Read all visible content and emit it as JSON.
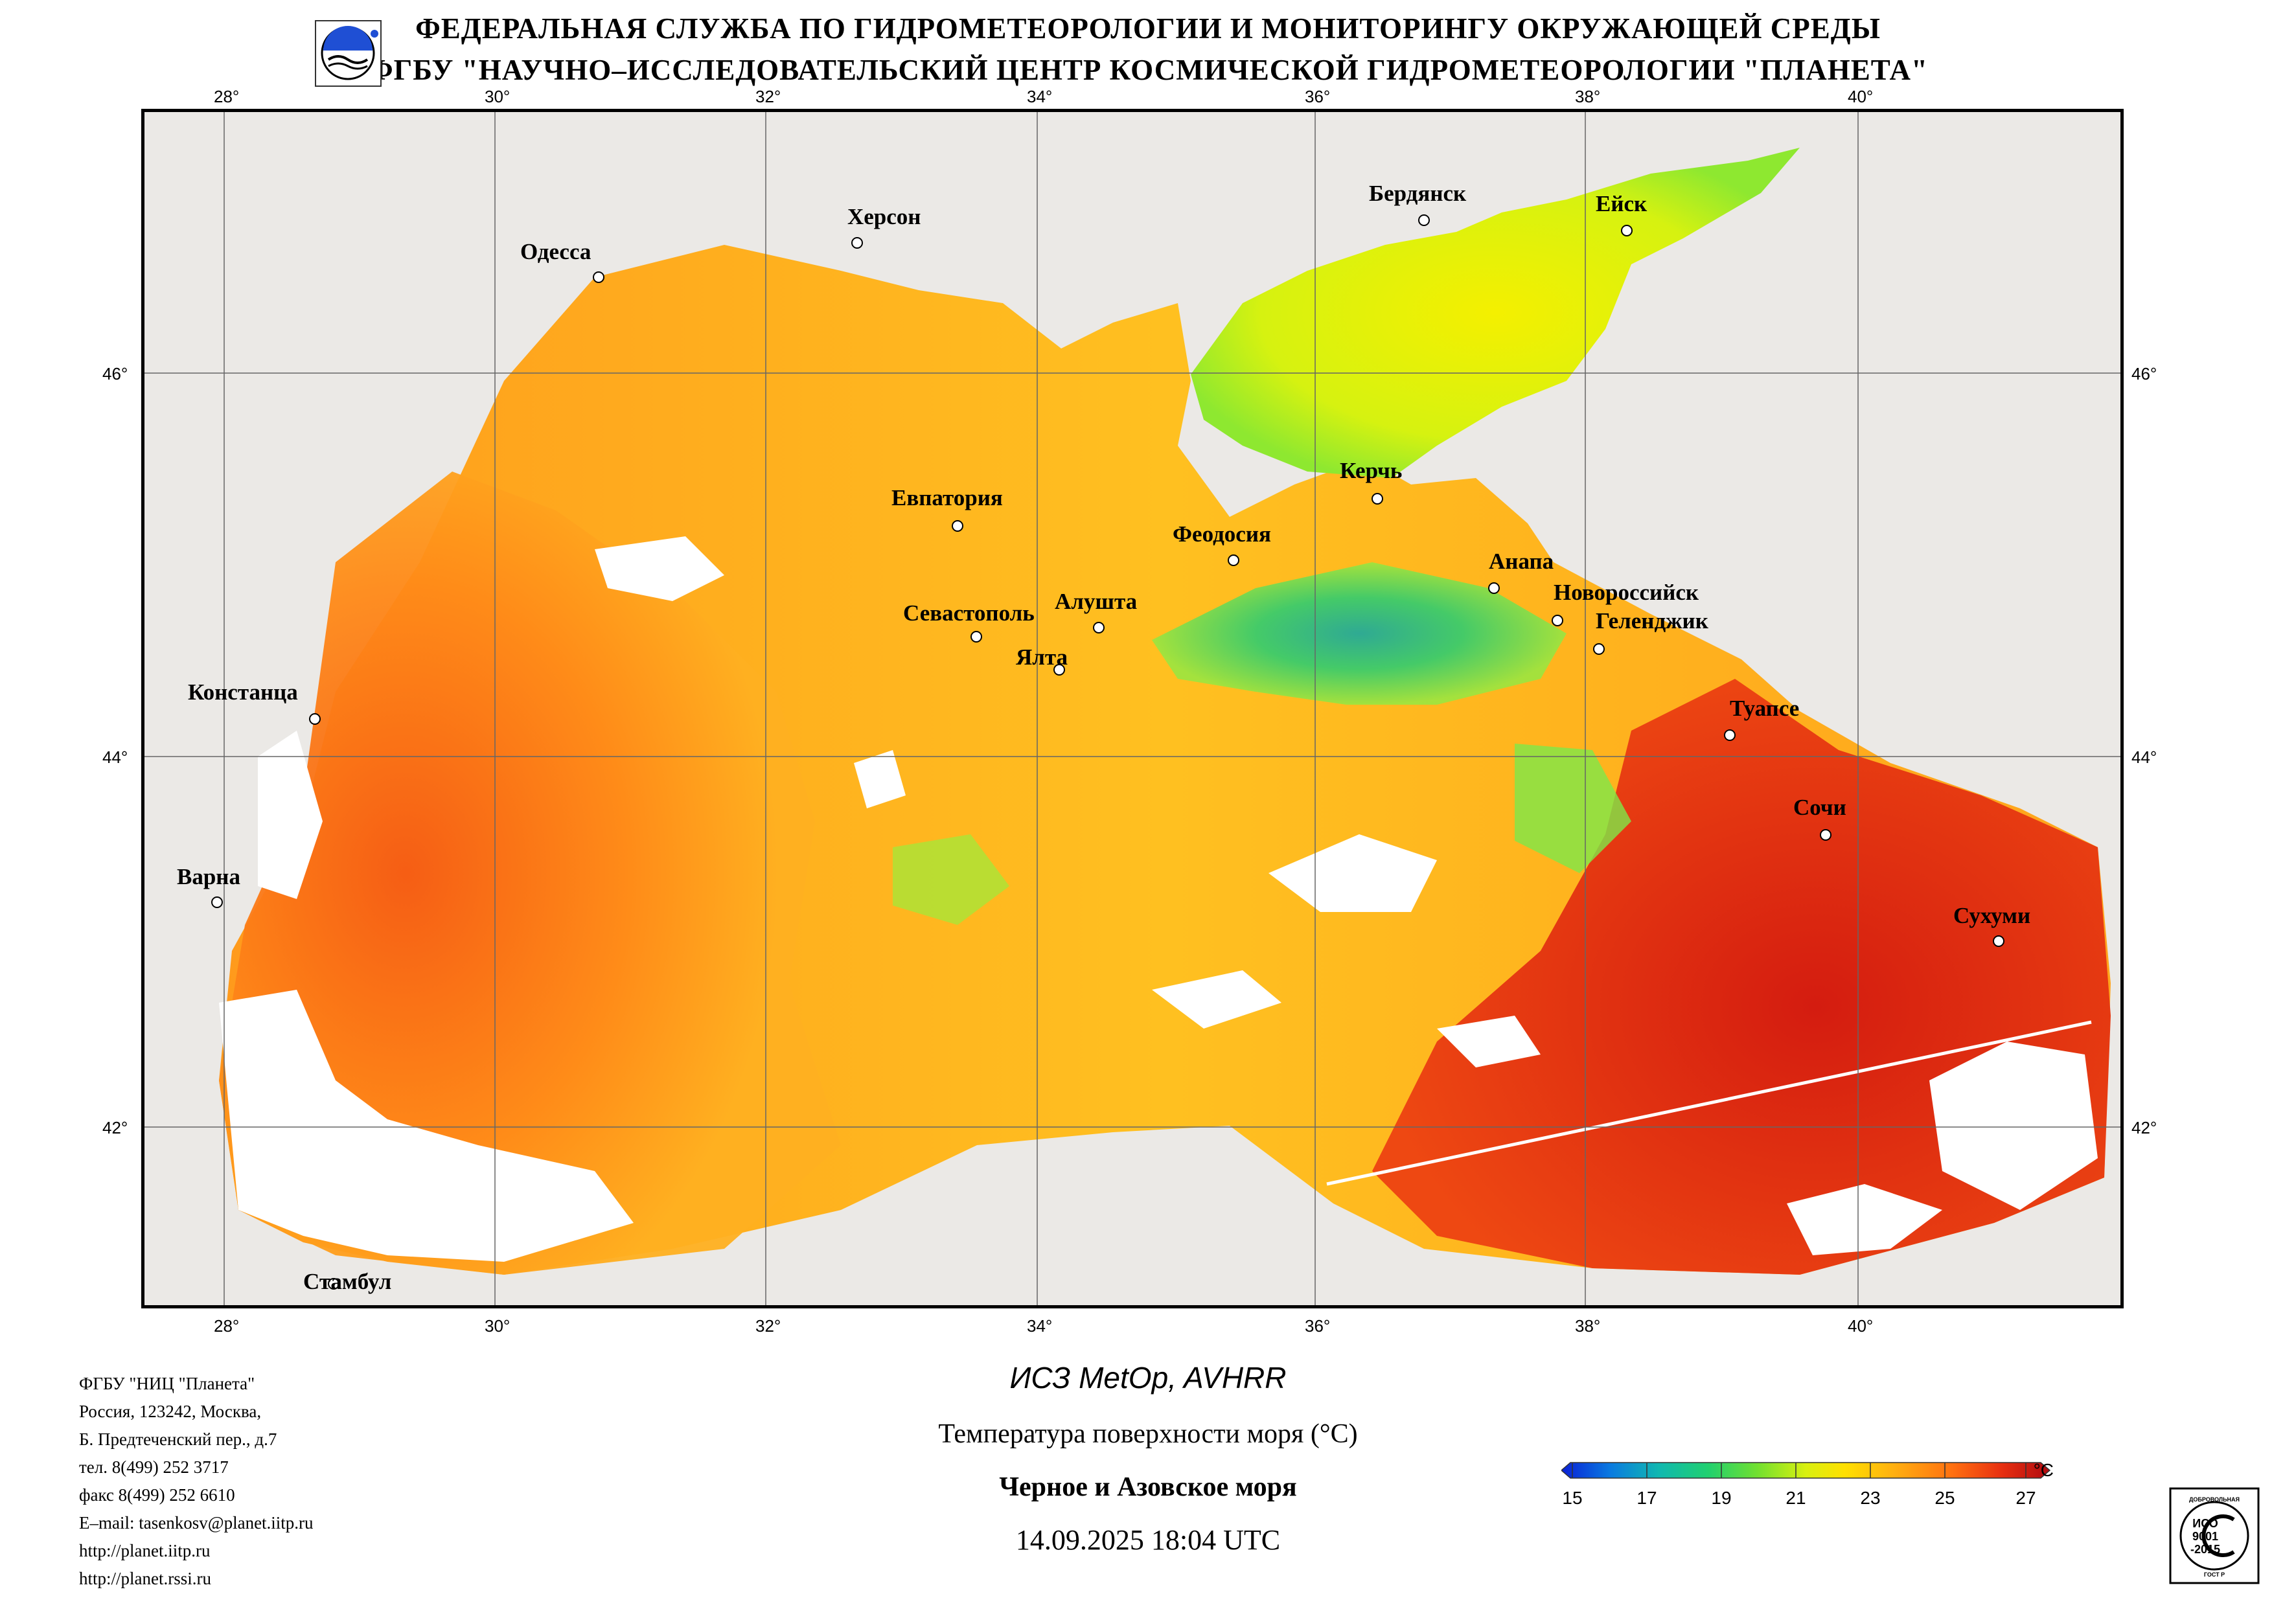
{
  "header": {
    "line1": "ФЕДЕРАЛЬНАЯ СЛУЖБА ПО ГИДРОМЕТЕОРОЛОГИИ И МОНИТОРИНГУ ОКРУЖАЮЩЕЙ СРЕДЫ",
    "line2": "ФГБУ \"НАУЧНО–ИССЛЕДОВАТЕЛЬСКИЙ ЦЕНТР КОСМИЧЕСКОЙ ГИДРОМЕТЕОРОЛОГИИ \"ПЛАНЕТА\""
  },
  "map": {
    "lon_labels": [
      "28°",
      "30°",
      "32°",
      "34°",
      "36°",
      "38°",
      "40°"
    ],
    "lat_labels": [
      "46°",
      "44°",
      "42°"
    ],
    "cities": [
      "Херсон",
      "Одесса",
      "Бердянск",
      "Ейск",
      "Евпатория",
      "Керчь",
      "Феодосия",
      "Анапа",
      "Новороссийск",
      "Геленджик",
      "Севастополь",
      "Алушта",
      "Ялта",
      "Констанца",
      "Туапсе",
      "Сочи",
      "Варна",
      "Сухуми",
      "Стамбул"
    ],
    "colors": {
      "land": "#ebe9e6",
      "no_data": "#ffffff",
      "border": "#000000"
    }
  },
  "footer": {
    "org_lines": [
      "ФГБУ \"НИЦ \"Планета\"",
      "Россия, 123242, Москва,",
      "Б. Предтеченский пер., д.7",
      "тел. 8(499) 252 3717",
      "факс 8(499) 252 6610",
      "E–mail: tasenkosv@planet.iitp.ru",
      "http://planet.iitp.ru",
      "http://planet.rssi.ru"
    ],
    "satellite": "ИСЗ MetOp, AVHRR",
    "parameter": "Температура поверхности моря (°C)",
    "region": "Черное и Азовское моря",
    "datetime": "14.09.2025 18:04 UTC"
  },
  "colorbar": {
    "unit": "°C",
    "ticks": [
      "15",
      "17",
      "19",
      "21",
      "23",
      "25",
      "27"
    ],
    "stops": [
      "#0a1fd6",
      "#0aa0e0",
      "#10c890",
      "#40e040",
      "#a8f020",
      "#f4f000",
      "#ffd000",
      "#ffaa10",
      "#ff7a10",
      "#f04010",
      "#d01a10",
      "#b00a10"
    ]
  },
  "iso_badge": {
    "top_text": "ДОБРОВОЛЬНАЯ",
    "line1": "ИСО",
    "line2": "9001",
    "line3": "-2015",
    "bottom_text": "ГОСТ Р"
  }
}
